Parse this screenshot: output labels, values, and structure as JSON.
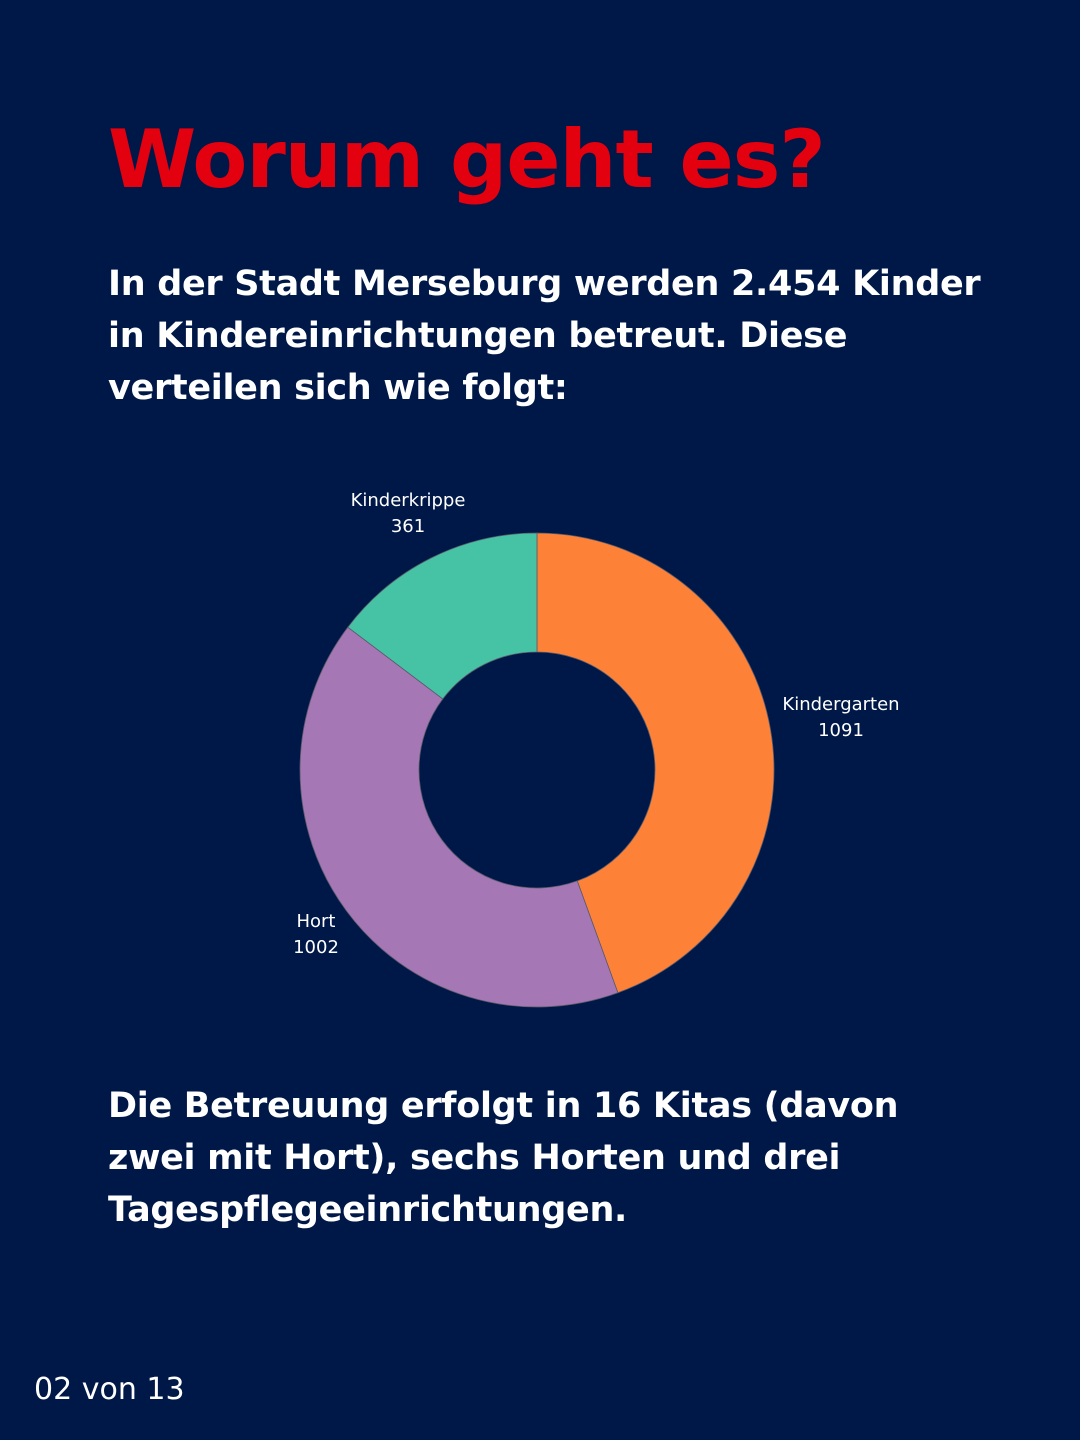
{
  "header": {
    "title": "Worum geht es?"
  },
  "intro_text": "In der Stadt Merseburg werden 2.454 Kinder in Kindereinrichtungen betreut. Diese verteilen sich wie folgt:",
  "outro_text": "Die Betreuung erfolgt in 16 Kitas (davon zwei mit Hort), sechs Horten und drei Tagespflegeeinrichtungen.",
  "footer": {
    "page_counter": "02 von 13"
  },
  "chart_data": {
    "type": "pie",
    "variant": "donut",
    "title": "",
    "categories": [
      "Kindergarten",
      "Hort",
      "Kinderkrippe"
    ],
    "values": [
      1091,
      1002,
      361
    ],
    "colors": [
      "#fe8138",
      "#a577b4",
      "#45c3a4"
    ],
    "labels": [
      {
        "name": "Kindergarten",
        "value": "1091"
      },
      {
        "name": "Hort",
        "value": "1002"
      },
      {
        "name": "Kinderkrippe",
        "value": "361"
      }
    ]
  },
  "colors": {
    "background": "#001847",
    "accent": "#e3000f",
    "text": "#ffffff"
  }
}
